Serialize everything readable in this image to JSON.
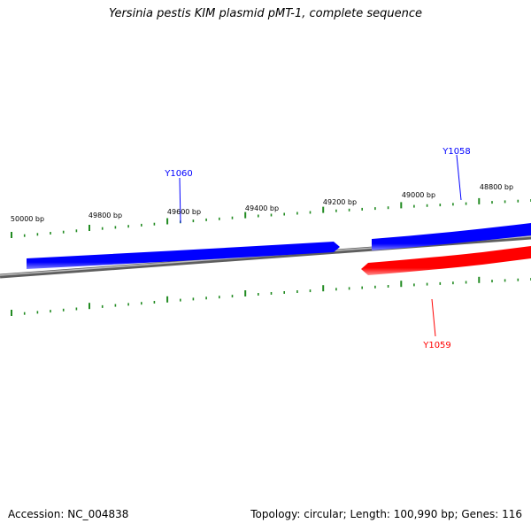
{
  "title": "Yersinia pestis KIM plasmid pMT-1, complete sequence",
  "ticks": [
    {
      "label": "50000 bp"
    },
    {
      "label": "49800 bp"
    },
    {
      "label": "49600 bp"
    },
    {
      "label": "49400 bp"
    },
    {
      "label": "49200 bp"
    },
    {
      "label": "49000 bp"
    },
    {
      "label": "48800 bp"
    }
  ],
  "genes": [
    {
      "name": "Y1060",
      "strand": "forward",
      "color": "#0000ff"
    },
    {
      "name": "Y1058",
      "strand": "forward",
      "color": "#0000ff"
    },
    {
      "name": "Y1059",
      "strand": "reverse",
      "color": "#ff0000"
    }
  ],
  "colors": {
    "forward_gene": "#0000ff",
    "reverse_gene": "#ff0000",
    "backbone": "#808080",
    "tick": "#228b22"
  },
  "footer": {
    "accession": "Accession: NC_004838",
    "topology": "Topology: circular",
    "length": "Length: 100,990 bp",
    "genes": "Genes: 116"
  }
}
